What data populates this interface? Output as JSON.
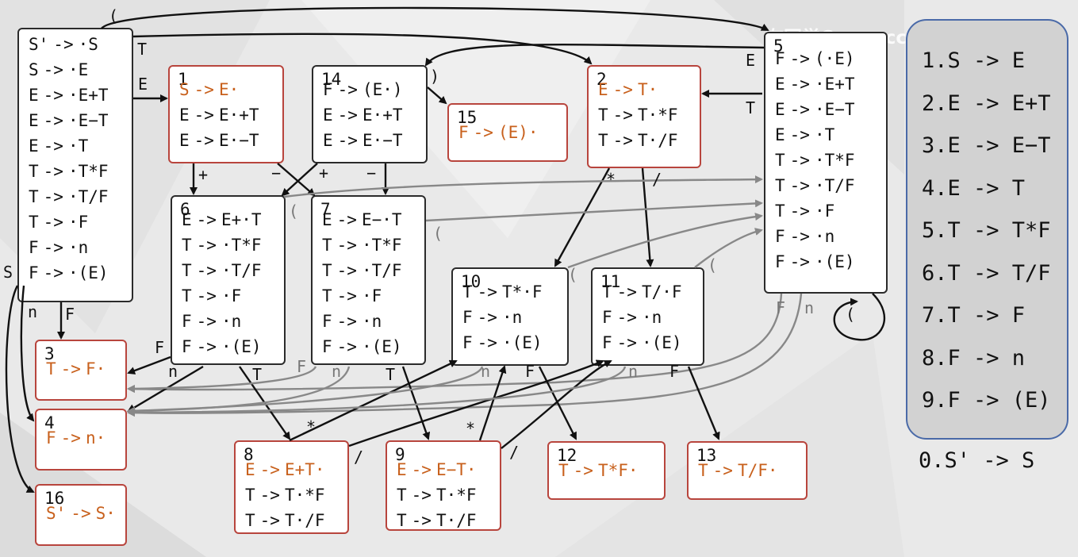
{
  "states": [
    {
      "id": "0",
      "number": "",
      "items": [
        [
          "S'",
          "->",
          "·S"
        ],
        [
          "S",
          "->",
          "·E"
        ],
        [
          "E",
          "->",
          "·E+T"
        ],
        [
          "E",
          "->",
          "·E−T"
        ],
        [
          "E",
          "->",
          "·T"
        ],
        [
          "T",
          "->",
          "·T*F"
        ],
        [
          "T",
          "->",
          "·T/F"
        ],
        [
          "T",
          "->",
          "·F"
        ],
        [
          "F",
          "->",
          "·n"
        ],
        [
          "F",
          "->",
          "·(E)"
        ]
      ],
      "highlight_first": false,
      "accept": false
    },
    {
      "id": "1",
      "number": "1",
      "items": [
        [
          "S",
          "->",
          "E·"
        ],
        [
          "E",
          "->",
          "E·+T"
        ],
        [
          "E",
          "->",
          "E·−T"
        ]
      ],
      "highlight_first": true,
      "accept": true
    },
    {
      "id": "14",
      "number": "14",
      "items": [
        [
          "F",
          "->",
          "(E·)"
        ],
        [
          "E",
          "->",
          "E·+T"
        ],
        [
          "E",
          "->",
          "E·−T"
        ]
      ],
      "highlight_first": false,
      "accept": false
    },
    {
      "id": "15",
      "number": "15",
      "items": [
        [
          "F",
          "->",
          "(E)·"
        ]
      ],
      "highlight_first": true,
      "accept": true
    },
    {
      "id": "2",
      "number": "2",
      "items": [
        [
          "E",
          "->",
          "T·"
        ],
        [
          "T",
          "->",
          "T·*F"
        ],
        [
          "T",
          "->",
          "T·/F"
        ]
      ],
      "highlight_first": true,
      "accept": true
    },
    {
      "id": "5",
      "number": "5",
      "items": [
        [
          "F",
          "->",
          "(·E)"
        ],
        [
          "E",
          "->",
          "·E+T"
        ],
        [
          "E",
          "->",
          "·E−T"
        ],
        [
          "E",
          "->",
          "·T"
        ],
        [
          "T",
          "->",
          "·T*F"
        ],
        [
          "T",
          "->",
          "·T/F"
        ],
        [
          "T",
          "->",
          "·F"
        ],
        [
          "F",
          "->",
          "·n"
        ],
        [
          "F",
          "->",
          "·(E)"
        ]
      ],
      "highlight_first": false,
      "accept": false
    },
    {
      "id": "6",
      "number": "6",
      "items": [
        [
          "E",
          "->",
          "E+·T"
        ],
        [
          "T",
          "->",
          "·T*F"
        ],
        [
          "T",
          "->",
          "·T/F"
        ],
        [
          "T",
          "->",
          "·F"
        ],
        [
          "F",
          "->",
          "·n"
        ],
        [
          "F",
          "->",
          "·(E)"
        ]
      ],
      "highlight_first": false,
      "accept": false
    },
    {
      "id": "7",
      "number": "7",
      "items": [
        [
          "E",
          "->",
          "E−·T"
        ],
        [
          "T",
          "->",
          "·T*F"
        ],
        [
          "T",
          "->",
          "·T/F"
        ],
        [
          "T",
          "->",
          "·F"
        ],
        [
          "F",
          "->",
          "·n"
        ],
        [
          "F",
          "->",
          "·(E)"
        ]
      ],
      "highlight_first": false,
      "accept": false
    },
    {
      "id": "10",
      "number": "10",
      "items": [
        [
          "T",
          "->",
          "T*·F"
        ],
        [
          "F",
          "->",
          "·n"
        ],
        [
          "F",
          "->",
          "·(E)"
        ]
      ],
      "highlight_first": false,
      "accept": false
    },
    {
      "id": "11",
      "number": "11",
      "items": [
        [
          "T",
          "->",
          "T/·F"
        ],
        [
          "F",
          "->",
          "·n"
        ],
        [
          "F",
          "->",
          "·(E)"
        ]
      ],
      "highlight_first": false,
      "accept": false
    },
    {
      "id": "3",
      "number": "3",
      "items": [
        [
          "T",
          "->",
          "F·"
        ]
      ],
      "highlight_first": true,
      "accept": true
    },
    {
      "id": "4",
      "number": "4",
      "items": [
        [
          "F",
          "->",
          "n·"
        ]
      ],
      "highlight_first": true,
      "accept": true
    },
    {
      "id": "16",
      "number": "16",
      "items": [
        [
          "S'",
          "->",
          "S·"
        ]
      ],
      "highlight_first": true,
      "accept": true
    },
    {
      "id": "8",
      "number": "8",
      "items": [
        [
          "E",
          "->",
          "E+T·"
        ],
        [
          "T",
          "->",
          "T·*F"
        ],
        [
          "T",
          "->",
          "T·/F"
        ]
      ],
      "highlight_first": true,
      "accept": true
    },
    {
      "id": "9",
      "number": "9",
      "items": [
        [
          "E",
          "->",
          "E−T·"
        ],
        [
          "T",
          "->",
          "T·*F"
        ],
        [
          "T",
          "->",
          "T·/F"
        ]
      ],
      "highlight_first": true,
      "accept": true
    },
    {
      "id": "12",
      "number": "12",
      "items": [
        [
          "T",
          "->",
          "T*F·"
        ]
      ],
      "highlight_first": true,
      "accept": true
    },
    {
      "id": "13",
      "number": "13",
      "items": [
        [
          "T",
          "->",
          "T/F·"
        ]
      ],
      "highlight_first": true,
      "accept": true
    }
  ],
  "transitions": [
    {
      "from": "0",
      "to": "1",
      "symbol": "E"
    },
    {
      "from": "0",
      "to": "2",
      "symbol": "T"
    },
    {
      "from": "0",
      "to": "5",
      "symbol": "("
    },
    {
      "from": "0",
      "to": "3",
      "symbol": "F"
    },
    {
      "from": "0",
      "to": "4",
      "symbol": "n"
    },
    {
      "from": "0",
      "to": "16",
      "symbol": "S"
    },
    {
      "from": "1",
      "to": "6",
      "symbol": "+"
    },
    {
      "from": "1",
      "to": "7",
      "symbol": "−"
    },
    {
      "from": "14",
      "to": "15",
      "symbol": ")"
    },
    {
      "from": "14",
      "to": "6",
      "symbol": "+"
    },
    {
      "from": "14",
      "to": "7",
      "symbol": "−"
    },
    {
      "from": "2",
      "to": "10",
      "symbol": "*"
    },
    {
      "from": "2",
      "to": "11",
      "symbol": "/"
    },
    {
      "from": "5",
      "to": "14",
      "symbol": "E"
    },
    {
      "from": "5",
      "to": "2",
      "symbol": "T"
    },
    {
      "from": "5",
      "to": "5",
      "symbol": "("
    },
    {
      "from": "5",
      "to": "3",
      "symbol": "F"
    },
    {
      "from": "5",
      "to": "4",
      "symbol": "n"
    },
    {
      "from": "6",
      "to": "3",
      "symbol": "F"
    },
    {
      "from": "6",
      "to": "4",
      "symbol": "n"
    },
    {
      "from": "6",
      "to": "8",
      "symbol": "T"
    },
    {
      "from": "6",
      "to": "5",
      "symbol": "("
    },
    {
      "from": "7",
      "to": "3",
      "symbol": "F"
    },
    {
      "from": "7",
      "to": "4",
      "symbol": "n"
    },
    {
      "from": "7",
      "to": "9",
      "symbol": "T"
    },
    {
      "from": "7",
      "to": "5",
      "symbol": "("
    },
    {
      "from": "8",
      "to": "10",
      "symbol": "*"
    },
    {
      "from": "8",
      "to": "11",
      "symbol": "/"
    },
    {
      "from": "9",
      "to": "10",
      "symbol": "*"
    },
    {
      "from": "9",
      "to": "11",
      "symbol": "/"
    },
    {
      "from": "10",
      "to": "12",
      "symbol": "F"
    },
    {
      "from": "10",
      "to": "4",
      "symbol": "n"
    },
    {
      "from": "10",
      "to": "5",
      "symbol": "("
    },
    {
      "from": "11",
      "to": "13",
      "symbol": "F"
    },
    {
      "from": "11",
      "to": "4",
      "symbol": "n"
    },
    {
      "from": "11",
      "to": "5",
      "symbol": "("
    }
  ],
  "grammar_rules": [
    "1.S -> E",
    "2.E -> E+T",
    "3.E -> E−T",
    "4.E -> T",
    "5.T -> T*F",
    "6.T -> T/F",
    "7.T -> F",
    "8.F -> n",
    "9.F -> (E)"
  ],
  "augmented_rule": "0.S' -> S",
  "watermark": "布同学Cappuccino",
  "watermark_logo": "bilibili",
  "colors": {
    "accent_text": "#c8601c",
    "accept_border": "#b8453d",
    "legend_border": "#4a6aa8",
    "grey_edge": "#888888"
  }
}
